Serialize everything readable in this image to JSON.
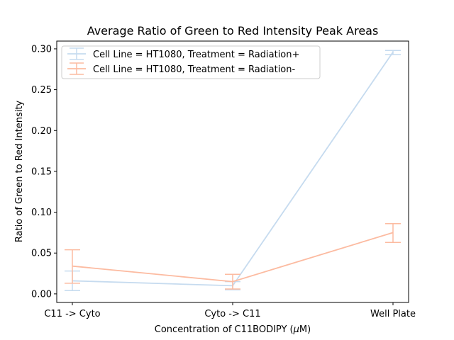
{
  "chart_data": {
    "type": "line",
    "title": "Average Ratio of Green to Red Intensity Peak Areas",
    "xlabel": "Concentration of C11BODIPY (μM)",
    "ylabel": "Ratio of Green to Red Intensity",
    "categories": [
      "C11 -> Cyto",
      "Cyto -> C11",
      "Well Plate"
    ],
    "ylim": [
      -0.0105,
      0.3095
    ],
    "yticks": [
      0.0,
      0.05,
      0.1,
      0.15,
      0.2,
      0.25,
      0.3
    ],
    "ytick_labels": [
      "0.00",
      "0.05",
      "0.10",
      "0.15",
      "0.20",
      "0.25",
      "0.30"
    ],
    "grid": false,
    "legend_position": "upper-left",
    "series": [
      {
        "name": "Cell Line = HT1080, Treatment = Radiation+",
        "color": "#c6dbef",
        "values": [
          0.016,
          0.01,
          0.296
        ],
        "err_low": [
          0.004,
          0.005,
          0.293
        ],
        "err_high": [
          0.028,
          0.015,
          0.298
        ]
      },
      {
        "name": "Cell Line = HT1080, Treatment = Radiation-",
        "color": "#fcbba1",
        "values": [
          0.034,
          0.015,
          0.075
        ],
        "err_low": [
          0.013,
          0.006,
          0.063
        ],
        "err_high": [
          0.054,
          0.024,
          0.086
        ]
      }
    ]
  }
}
